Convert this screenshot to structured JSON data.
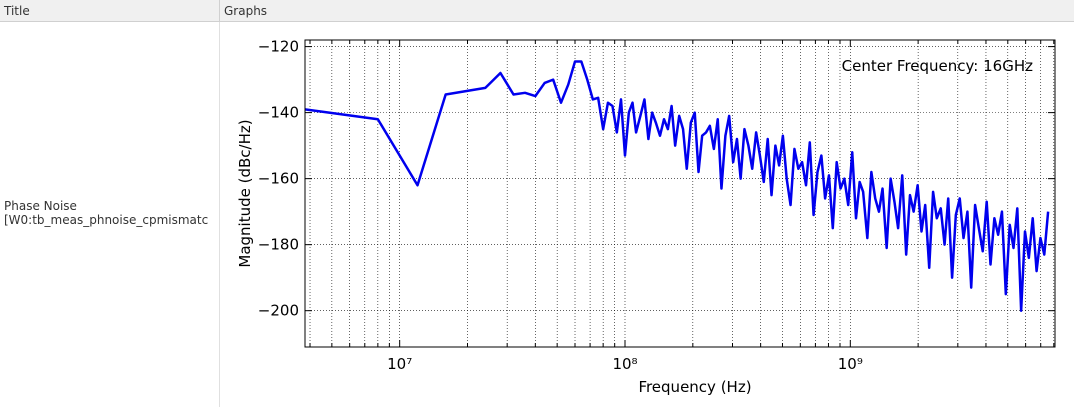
{
  "table": {
    "headers": [
      "Title",
      "Graphs"
    ],
    "rows": [
      {
        "title": [
          "Phase Noise",
          "[W0:tb_meas_phnoise_cpmismatc"
        ]
      }
    ]
  },
  "chart_data": {
    "type": "line",
    "xscale": "log",
    "color": "#0000ee",
    "grid": true,
    "annotation": "Center Frequency: 16GHz",
    "xlabel": "Frequency (Hz)",
    "ylabel": "Magnitude (dBc/Hz)",
    "xlim": [
      3800000,
      8100000000
    ],
    "xticks": [
      {
        "value": 10000000,
        "label": "10⁷"
      },
      {
        "value": 100000000,
        "label": "10⁸"
      },
      {
        "value": 1000000000,
        "label": "10⁹"
      }
    ],
    "xminorticks": [
      4000000,
      5000000,
      6000000,
      7000000,
      8000000,
      9000000,
      20000000,
      30000000,
      40000000,
      50000000,
      60000000,
      70000000,
      80000000,
      90000000,
      200000000,
      300000000,
      400000000,
      500000000,
      600000000,
      700000000,
      800000000,
      900000000,
      2000000000,
      3000000000,
      4000000000,
      5000000000,
      6000000000,
      7000000000,
      8000000000
    ],
    "ylim": [
      -211,
      -118
    ],
    "yticks": [
      {
        "value": -200,
        "label": "−200"
      },
      {
        "value": -180,
        "label": "−180"
      },
      {
        "value": -160,
        "label": "−160"
      },
      {
        "value": -140,
        "label": "−140"
      },
      {
        "value": -120,
        "label": "−120"
      }
    ],
    "x": [
      3800000,
      8000000,
      12000000,
      16000000,
      24000000,
      28000000,
      32000000,
      36000000,
      40000000,
      44000000,
      48000000,
      52000000,
      56000000,
      60000000,
      64000000,
      68000000,
      72000000,
      76000000,
      80000000,
      84000000,
      88000000,
      92000000,
      96000000,
      100000000,
      104000000,
      108000000,
      112000000,
      117000000,
      122000000,
      127000000,
      132000000,
      137000000,
      143000000,
      149000000,
      155000000,
      161000000,
      167000000,
      174000000,
      181000000,
      188000000,
      196000000,
      204000000,
      212000000,
      220000000,
      229000000,
      238000000,
      248000000,
      258000000,
      268000000,
      279000000,
      290000000,
      302000000,
      314000000,
      326000000,
      339000000,
      353000000,
      367000000,
      382000000,
      397000000,
      413000000,
      430000000,
      447000000,
      465000000,
      483000000,
      502000000,
      522000000,
      543000000,
      565000000,
      588000000,
      611000000,
      636000000,
      661000000,
      687000000,
      715000000,
      744000000,
      773000000,
      804000000,
      836000000,
      870000000,
      905000000,
      941000000,
      979000000,
      1020000000,
      1060000000,
      1100000000,
      1140000000,
      1190000000,
      1240000000,
      1290000000,
      1340000000,
      1390000000,
      1450000000,
      1510000000,
      1570000000,
      1630000000,
      1700000000,
      1770000000,
      1840000000,
      1910000000,
      1990000000,
      2070000000,
      2150000000,
      2240000000,
      2330000000,
      2420000000,
      2520000000,
      2620000000,
      2720000000,
      2830000000,
      2940000000,
      3060000000,
      3180000000,
      3310000000,
      3440000000,
      3580000000,
      3720000000,
      3870000000,
      4030000000,
      4190000000,
      4360000000,
      4530000000,
      4710000000,
      4900000000,
      5100000000,
      5300000000,
      5510000000,
      5730000000,
      5960000000,
      6200000000,
      6450000000,
      6710000000,
      6980000000,
      7260000000,
      7550000000
    ],
    "values": [
      -139,
      -142,
      -162,
      -134.5,
      -132.5,
      -128,
      -134.5,
      -134,
      -135,
      -131,
      -130,
      -137,
      -131.5,
      -124.5,
      -124.5,
      -130,
      -136,
      -135.5,
      -145,
      -137,
      -138,
      -146,
      -136,
      -153,
      -140,
      -137,
      -146,
      -141,
      -136,
      -148,
      -140,
      -143,
      -147,
      -142,
      -145,
      -138,
      -150,
      -141,
      -145,
      -157,
      -143,
      -140,
      -158,
      -147,
      -146,
      -144,
      -151,
      -142,
      -163,
      -147,
      -141,
      -155,
      -148,
      -160,
      -145,
      -150,
      -157,
      -146,
      -153,
      -161,
      -148,
      -165,
      -150,
      -156,
      -147,
      -160,
      -168,
      -151,
      -157,
      -155,
      -162,
      -149,
      -171,
      -158,
      -153,
      -166,
      -159,
      -175,
      -155,
      -163,
      -160,
      -168,
      -152,
      -172,
      -161,
      -164,
      -178,
      -158,
      -166,
      -170,
      -163,
      -181,
      -160,
      -167,
      -175,
      -159,
      -183,
      -165,
      -170,
      -162,
      -176,
      -168,
      -187,
      -164,
      -172,
      -169,
      -180,
      -166,
      -190,
      -171,
      -166,
      -178,
      -170,
      -193,
      -168,
      -175,
      -182,
      -167,
      -186,
      -172,
      -177,
      -170,
      -195,
      -174,
      -181,
      -169,
      -200,
      -176,
      -184,
      -172,
      -188,
      -178,
      -183,
      -170
    ]
  }
}
